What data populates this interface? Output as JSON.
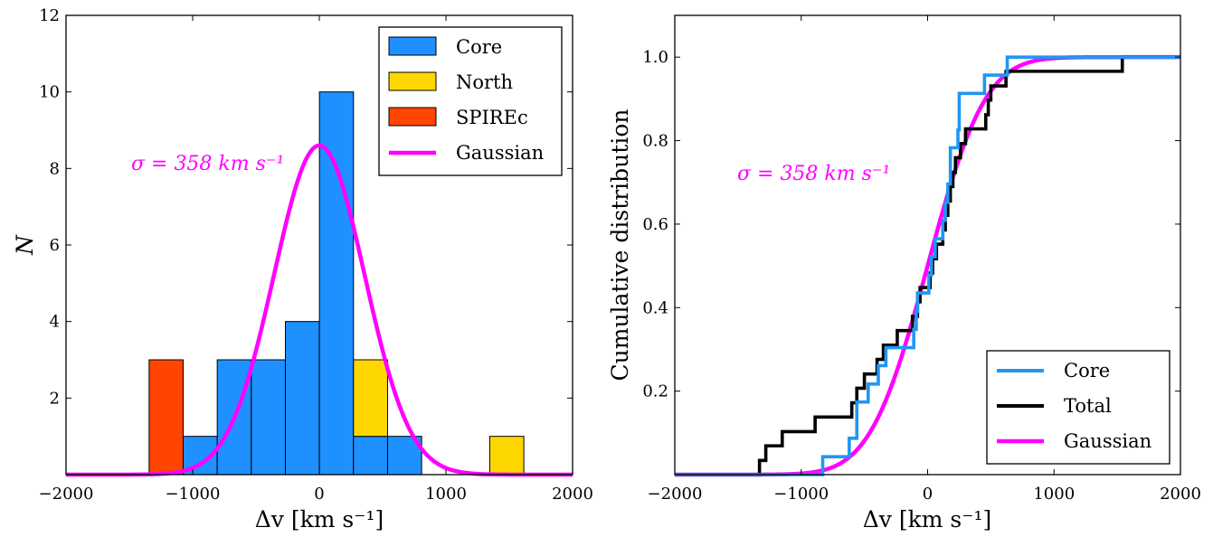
{
  "chart_data": [
    {
      "type": "bar",
      "xlabel": "Δv [km s⁻¹]",
      "ylabel": "N",
      "xlim": [
        -2000,
        2000
      ],
      "ylim": [
        0,
        12
      ],
      "xticks": [
        -2000,
        -1000,
        0,
        1000,
        2000
      ],
      "xtick_labels": [
        "−2000",
        "−1000",
        "0",
        "1000",
        "2000"
      ],
      "yticks": [
        2,
        4,
        6,
        8,
        10,
        12
      ],
      "ytick_labels": [
        "2",
        "4",
        "6",
        "8",
        "10",
        "12"
      ],
      "annotation": "σ = 358 km s⁻¹",
      "legend_position": "top-right",
      "legend": [
        "Core",
        "North",
        "SPIREc",
        "Gaussian"
      ],
      "series": [
        {
          "name": "Core",
          "color": "#1e90ff",
          "bins": [
            {
              "x0": -1075,
              "x1": -806,
              "count": 1,
              "bottom": 0
            },
            {
              "x0": -806,
              "x1": -537,
              "count": 3,
              "bottom": 0
            },
            {
              "x0": -537,
              "x1": -268,
              "count": 3,
              "bottom": 0
            },
            {
              "x0": -268,
              "x1": 1,
              "count": 4,
              "bottom": 0
            },
            {
              "x0": 1,
              "x1": 270,
              "count": 10,
              "bottom": 0
            },
            {
              "x0": 270,
              "x1": 539,
              "count": 1,
              "bottom": 0
            },
            {
              "x0": 539,
              "x1": 808,
              "count": 1,
              "bottom": 0
            }
          ]
        },
        {
          "name": "North",
          "color": "#ffd700",
          "bins": [
            {
              "x0": 270,
              "x1": 539,
              "count": 2,
              "bottom": 1
            },
            {
              "x0": 1346,
              "x1": 1615,
              "count": 1,
              "bottom": 0
            }
          ]
        },
        {
          "name": "SPIREc",
          "color": "#ff4500",
          "bins": [
            {
              "x0": -1344,
              "x1": -1075,
              "count": 3,
              "bottom": 0
            }
          ]
        },
        {
          "name": "Gaussian",
          "color": "#ff00ff",
          "curve": {
            "mu": 0,
            "sigma": 358,
            "amplitude": 8.6
          }
        }
      ]
    },
    {
      "type": "line",
      "xlabel": "Δv [km s⁻¹]",
      "ylabel": "Cumulative distribution",
      "xlim": [
        -2000,
        2000
      ],
      "ylim": [
        0,
        1.1
      ],
      "xticks": [
        -2000,
        -1000,
        0,
        1000,
        2000
      ],
      "xtick_labels": [
        "−2000",
        "−1000",
        "0",
        "1000",
        "2000"
      ],
      "yticks": [
        0.2,
        0.4,
        0.6,
        0.8,
        1.0
      ],
      "ytick_labels": [
        "0.2",
        "0.4",
        "0.6",
        "0.8",
        "1.0"
      ],
      "annotation": "σ = 358 km s⁻¹",
      "legend_position": "bottom-right",
      "legend": [
        "Core",
        "Total",
        "Gaussian"
      ],
      "series": [
        {
          "name": "Core",
          "color": "#2196f3",
          "steps": [
            [
              -2000,
              0
            ],
            [
              -830,
              0.043
            ],
            [
              -620,
              0.087
            ],
            [
              -560,
              0.174
            ],
            [
              -470,
              0.217
            ],
            [
              -390,
              0.261
            ],
            [
              -330,
              0.304
            ],
            [
              -110,
              0.348
            ],
            [
              -90,
              0.391
            ],
            [
              -80,
              0.435
            ],
            [
              10,
              0.478
            ],
            [
              30,
              0.522
            ],
            [
              60,
              0.565
            ],
            [
              120,
              0.609
            ],
            [
              140,
              0.652
            ],
            [
              160,
              0.696
            ],
            [
              180,
              0.783
            ],
            [
              240,
              0.826
            ],
            [
              250,
              0.913
            ],
            [
              450,
              0.957
            ],
            [
              630,
              1.0
            ],
            [
              2000,
              1.0
            ]
          ]
        },
        {
          "name": "Total",
          "color": "#000000",
          "steps": [
            [
              -2000,
              0
            ],
            [
              -1330,
              0.034
            ],
            [
              -1280,
              0.069
            ],
            [
              -1150,
              0.103
            ],
            [
              -890,
              0.138
            ],
            [
              -600,
              0.172
            ],
            [
              -560,
              0.207
            ],
            [
              -500,
              0.241
            ],
            [
              -400,
              0.276
            ],
            [
              -350,
              0.31
            ],
            [
              -240,
              0.345
            ],
            [
              -120,
              0.379
            ],
            [
              -80,
              0.414
            ],
            [
              -60,
              0.448
            ],
            [
              20,
              0.483
            ],
            [
              40,
              0.517
            ],
            [
              70,
              0.552
            ],
            [
              120,
              0.586
            ],
            [
              140,
              0.621
            ],
            [
              160,
              0.655
            ],
            [
              180,
              0.69
            ],
            [
              200,
              0.724
            ],
            [
              220,
              0.759
            ],
            [
              260,
              0.793
            ],
            [
              300,
              0.828
            ],
            [
              460,
              0.862
            ],
            [
              480,
              0.897
            ],
            [
              500,
              0.931
            ],
            [
              620,
              0.966
            ],
            [
              1540,
              1.0
            ],
            [
              2000,
              1.0
            ]
          ]
        },
        {
          "name": "Gaussian",
          "color": "#ff00ff",
          "cdf": {
            "mu": 0,
            "sigma": 358
          }
        }
      ]
    }
  ]
}
